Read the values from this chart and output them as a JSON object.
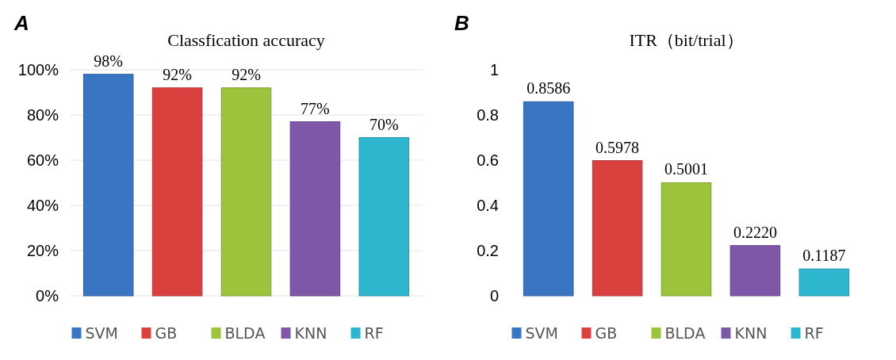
{
  "chart_data": [
    {
      "type": "bar",
      "title": "Classfication accuracy",
      "annotations": [
        "A"
      ],
      "categories": [
        "SVM",
        "GB",
        "BLDA",
        "KNN",
        "RF"
      ],
      "values": [
        98,
        92,
        92,
        77,
        70
      ],
      "colors": [
        "#3a75c4",
        "#d9403e",
        "#9bc43c",
        "#7e57a8",
        "#2eb6cf"
      ],
      "value_labels": [
        "98%",
        "92%",
        "92%",
        "77%",
        "70%"
      ],
      "ylim": [
        0,
        100
      ],
      "yticks": [
        {
          "value": 0,
          "label": "0%"
        },
        {
          "value": 20,
          "label": "20%"
        },
        {
          "value": 40,
          "label": "40%"
        },
        {
          "value": 60,
          "label": "60%"
        },
        {
          "value": 80,
          "label": "80%"
        },
        {
          "value": 100,
          "label": "100%"
        }
      ],
      "grid": "y"
    },
    {
      "type": "bar",
      "title": "ITR（bit/trial）",
      "annotations": [
        "B"
      ],
      "categories": [
        "SVM",
        "GB",
        "BLDA",
        "KNN",
        "RF"
      ],
      "values": [
        0.8586,
        0.5978,
        0.5001,
        0.222,
        0.1187
      ],
      "colors": [
        "#3a75c4",
        "#d9403e",
        "#9bc43c",
        "#7e57a8",
        "#2eb6cf"
      ],
      "value_labels": [
        "0.8586",
        "0.5978",
        "0.5001",
        "0.2220",
        "0.1187"
      ],
      "ylim": [
        0,
        1
      ],
      "yticks": [
        0,
        0.2,
        0.4,
        0.6,
        0.8,
        1
      ]
    }
  ]
}
